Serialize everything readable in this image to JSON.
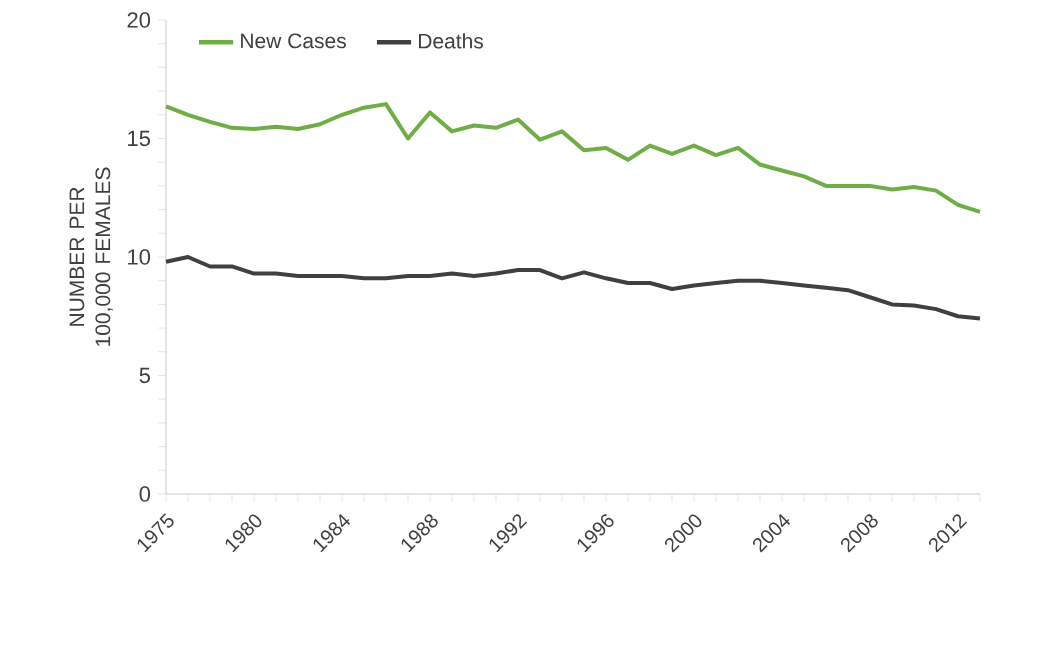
{
  "chart_data": {
    "type": "line",
    "ylabel": "NUMBER PER 100,000 FEMALES",
    "categories": [
      "1975",
      null,
      null,
      null,
      "1980",
      null,
      null,
      null,
      "1984",
      null,
      null,
      null,
      "1988",
      null,
      null,
      null,
      "1992",
      null,
      null,
      null,
      "1996",
      null,
      null,
      null,
      "2000",
      null,
      null,
      null,
      "2004",
      null,
      null,
      null,
      "2008",
      null,
      null,
      null,
      "2012",
      null
    ],
    "series": [
      {
        "name": "New Cases",
        "color": "#70ad47",
        "values": [
          16.35,
          16.0,
          15.7,
          15.45,
          15.4,
          15.5,
          15.4,
          15.6,
          16.0,
          16.3,
          16.45,
          15.0,
          16.1,
          15.3,
          15.55,
          15.45,
          15.8,
          14.95,
          15.3,
          14.5,
          14.6,
          14.1,
          14.7,
          14.35,
          14.7,
          14.3,
          14.6,
          13.9,
          13.65,
          13.4,
          13.0,
          13.0,
          13.0,
          12.85,
          12.95,
          12.8,
          12.2,
          11.9
        ]
      },
      {
        "name": "Deaths",
        "color": "#404040",
        "values": [
          9.8,
          10.0,
          9.6,
          9.6,
          9.3,
          9.3,
          9.2,
          9.2,
          9.2,
          9.1,
          9.1,
          9.2,
          9.2,
          9.3,
          9.2,
          9.3,
          9.45,
          9.45,
          9.1,
          9.35,
          9.1,
          8.9,
          8.9,
          8.65,
          8.8,
          8.9,
          9.0,
          9.0,
          8.9,
          8.8,
          8.7,
          8.6,
          8.3,
          8.0,
          7.95,
          7.8,
          7.5,
          7.4
        ]
      }
    ],
    "ylim": [
      0,
      20
    ],
    "yticks": [
      0,
      5,
      10,
      15,
      20
    ],
    "legend": "top left",
    "grid": false,
    "marker": "none",
    "line_style": "solid"
  }
}
